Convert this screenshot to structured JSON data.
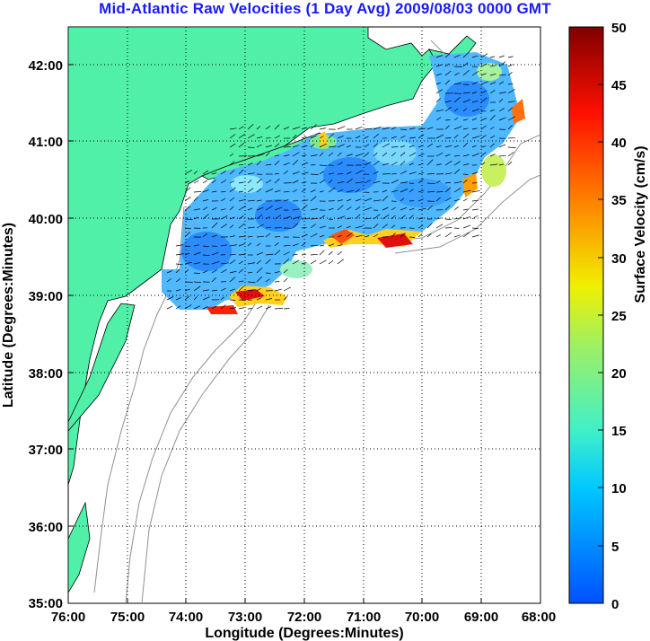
{
  "title": "Mid-Atlantic Raw Velocities (1 Day Avg) 2009/08/03 0000 GMT",
  "map": {
    "xlabel": "Longitude (Degrees:Minutes)",
    "ylabel": "Latitude (Degrees:Minutes)",
    "xticks": [
      "76:00",
      "75:00",
      "74:00",
      "73:00",
      "72:00",
      "71:00",
      "70:00",
      "69:00",
      "68:00"
    ],
    "yticks": [
      "42:00",
      "41:00",
      "40:00",
      "39:00",
      "38:00",
      "37:00",
      "36:00",
      "35:00"
    ],
    "lon_range": [
      -76,
      -68
    ],
    "lat_range": [
      35,
      42.5
    ],
    "grid": "dotted"
  },
  "colorbar": {
    "label": "Surface Velocity (cm/s)",
    "ticks": [
      "50",
      "45",
      "40",
      "35",
      "30",
      "25",
      "20",
      "15",
      "10",
      "5",
      "0"
    ],
    "range": [
      0,
      50
    ]
  },
  "colors": {
    "land": "#50f0a8",
    "title": "#1a1aff",
    "bathymetry": "#909090"
  }
}
